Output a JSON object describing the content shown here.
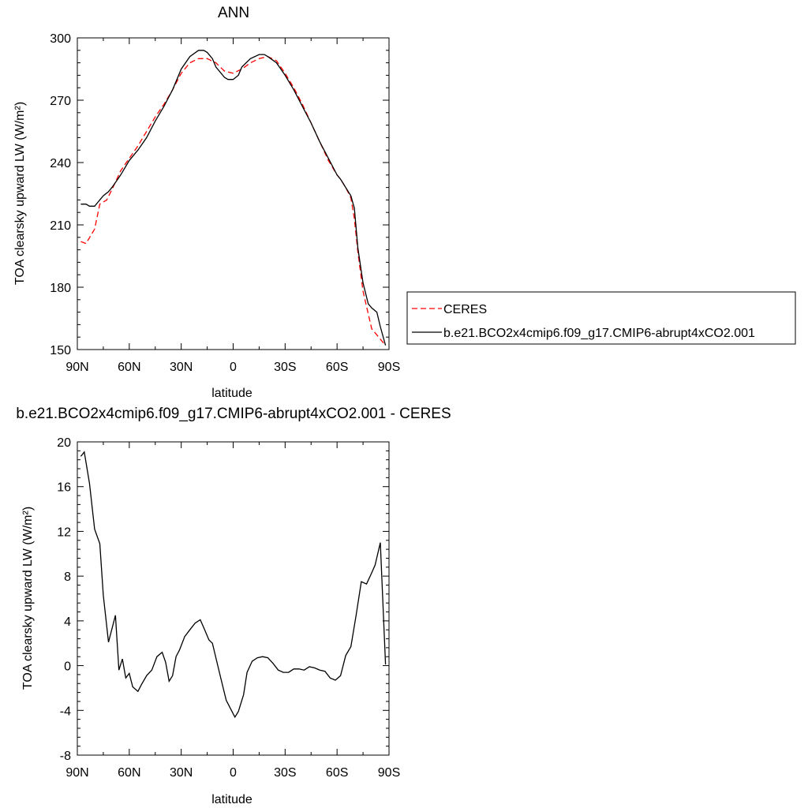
{
  "chart_data": [
    {
      "type": "line",
      "title": "ANN",
      "xlabel": "latitude",
      "ylabel": "TOA clearsky upward LW (W/m²)",
      "xlim": [
        90,
        -90
      ],
      "ylim": [
        150,
        300
      ],
      "xticks": [
        90,
        60,
        30,
        0,
        -30,
        -60,
        -90
      ],
      "xtick_labels": [
        "90N",
        "60N",
        "30N",
        "0",
        "30S",
        "60S",
        "90S"
      ],
      "yticks": [
        150,
        180,
        210,
        240,
        270,
        300
      ],
      "ytick_labels": [
        "150",
        "180",
        "210",
        "240",
        "270",
        "300"
      ],
      "grid": false,
      "legend_position": "right",
      "series": [
        {
          "name": "CERES",
          "color": "#ff0000",
          "dash": "dashed",
          "x": [
            88,
            85,
            80,
            77,
            73,
            70,
            65,
            60,
            55,
            50,
            45,
            40,
            35,
            30,
            25,
            20,
            15,
            10,
            5,
            0,
            -5,
            -10,
            -15,
            -20,
            -25,
            -30,
            -35,
            -40,
            -45,
            -50,
            -55,
            -60,
            -62,
            -65,
            -68,
            -70,
            -72,
            -75,
            -80,
            -85,
            -88
          ],
          "y": [
            202,
            201,
            208,
            220,
            222,
            227,
            236,
            242,
            248,
            255,
            262,
            268,
            275,
            283,
            288,
            290,
            290,
            288,
            284,
            283,
            285,
            288,
            290,
            291,
            289,
            283,
            276,
            268,
            259,
            250,
            241,
            234,
            232,
            228,
            223,
            213,
            197,
            178,
            160,
            155,
            152
          ]
        },
        {
          "name": "b.e21.BCO2x4cmip6.f09_g17.CMIP6-abrupt4xCO2.001",
          "color": "#000000",
          "dash": "solid",
          "x": [
            88,
            85,
            83,
            80,
            78,
            75,
            72,
            70,
            65,
            60,
            55,
            50,
            45,
            40,
            35,
            30,
            25,
            20,
            17,
            15,
            12,
            10,
            5,
            3,
            0,
            -3,
            -5,
            -10,
            -15,
            -18,
            -20,
            -25,
            -30,
            -35,
            -40,
            -45,
            -50,
            -55,
            -60,
            -62,
            -65,
            -68,
            -70,
            -72,
            -75,
            -78,
            -80,
            -83,
            -85,
            -88
          ],
          "y": [
            220,
            220,
            219,
            219,
            221,
            224,
            226,
            228,
            234,
            241,
            246,
            252,
            260,
            267,
            275,
            285,
            291,
            294,
            294,
            293,
            290,
            286,
            281,
            280,
            280,
            282,
            286,
            290,
            292,
            292,
            291,
            288,
            282,
            275,
            267,
            259,
            250,
            242,
            234,
            232,
            228,
            224,
            218,
            199,
            182,
            172,
            170,
            168,
            161,
            152
          ]
        }
      ]
    },
    {
      "type": "line",
      "title": "b.e21.BCO2x4cmip6.f09_g17.CMIP6-abrupt4xCO2.001 - CERES",
      "xlabel": "latitude",
      "ylabel": "TOA clearsky upward LW (W/m²)",
      "xlim": [
        90,
        -90
      ],
      "ylim": [
        -8,
        20
      ],
      "xticks": [
        90,
        60,
        30,
        0,
        -30,
        -60,
        -90
      ],
      "xtick_labels": [
        "90N",
        "60N",
        "30N",
        "0",
        "30S",
        "60S",
        "90S"
      ],
      "yticks": [
        -8,
        -4,
        0,
        4,
        8,
        12,
        16,
        20
      ],
      "ytick_labels": [
        "-8",
        "-4",
        "0",
        "4",
        "8",
        "12",
        "16",
        "20"
      ],
      "grid": false,
      "series": [
        {
          "color": "#000000",
          "dash": "solid",
          "x": [
            88,
            86,
            83,
            80,
            77,
            75,
            72,
            68,
            66,
            64,
            62,
            60,
            58,
            55,
            53,
            50,
            47,
            44,
            41,
            39,
            37,
            35,
            33,
            31,
            28,
            25,
            22,
            19,
            17,
            14,
            12,
            10,
            7,
            4,
            1,
            -1,
            -3,
            -6,
            -8,
            -11,
            -14,
            -17,
            -20,
            -23,
            -26,
            -29,
            -32,
            -35,
            -38,
            -41,
            -44,
            -47,
            -50,
            -53,
            -56,
            -59,
            -62,
            -65,
            -68,
            -71,
            -74,
            -77,
            -80,
            -82,
            -85,
            -88
          ],
          "y": [
            18.7,
            19.1,
            16.3,
            12.2,
            10.9,
            6.3,
            2.1,
            4.5,
            -0.4,
            0.6,
            -1.1,
            -0.7,
            -1.9,
            -2.3,
            -1.7,
            -0.9,
            -0.4,
            0.8,
            1.2,
            0.3,
            -1.4,
            -0.9,
            0.8,
            1.4,
            2.6,
            3.2,
            3.8,
            4.1,
            3.4,
            2.3,
            2.0,
            0.7,
            -1.2,
            -3.1,
            -4.0,
            -4.6,
            -4.1,
            -2.6,
            -0.6,
            0.4,
            0.7,
            0.8,
            0.7,
            0.2,
            -0.4,
            -0.6,
            -0.6,
            -0.3,
            -0.3,
            -0.4,
            -0.1,
            -0.2,
            -0.4,
            -0.5,
            -1.1,
            -1.3,
            -0.9,
            0.9,
            1.7,
            4.5,
            7.5,
            7.3,
            8.3,
            9.0,
            11.0,
            0.1
          ]
        }
      ]
    }
  ]
}
